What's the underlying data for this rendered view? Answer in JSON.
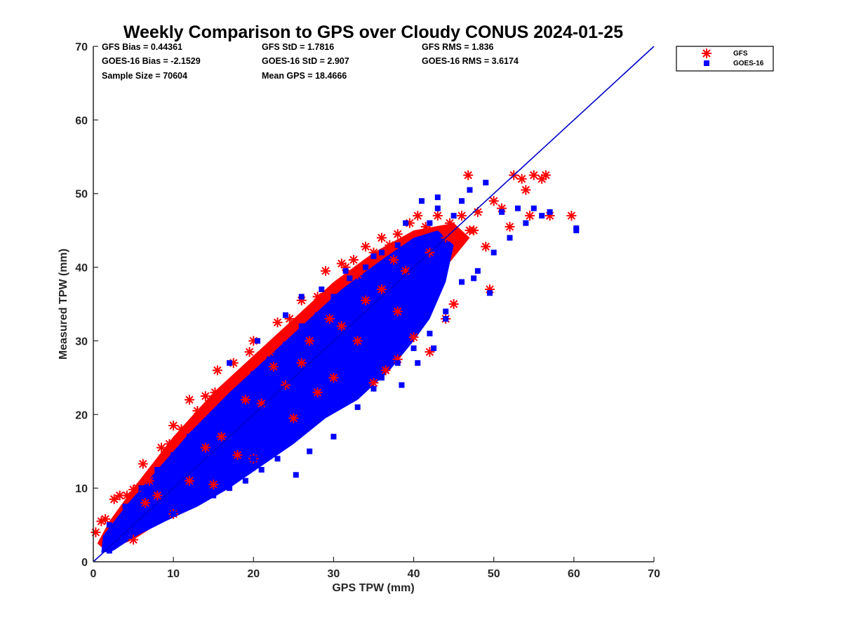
{
  "chart_data": {
    "type": "scatter",
    "title": "Weekly Comparison to GPS over Cloudy CONUS 2024-01-25",
    "xlabel": "GPS TPW (mm)",
    "ylabel": "Measured TPW (mm)",
    "xlim": [
      0,
      70
    ],
    "ylim": [
      0,
      70
    ],
    "xticks": [
      "0",
      "10",
      "20",
      "30",
      "40",
      "50",
      "60",
      "70"
    ],
    "yticks": [
      "0",
      "10",
      "20",
      "30",
      "40",
      "50",
      "60",
      "70"
    ],
    "grid": false,
    "legend_position": "top-right, outside",
    "stats": [
      [
        "GFS Bias = 0.44361",
        "GFS StD = 1.7816",
        "GFS RMS = 1.836"
      ],
      [
        "GOES-16 Bias = -2.1529",
        "GOES-16 StD = 2.907",
        "GOES-16 RMS = 3.6174"
      ],
      [
        "Sample Size = 70604",
        "Mean GPS = 18.4666",
        ""
      ]
    ],
    "reference_line": {
      "type": "one-to-one",
      "from": [
        0,
        0
      ],
      "to": [
        70,
        70
      ],
      "color": "#0000cc"
    },
    "series": [
      {
        "name": "GFS",
        "marker": "asterisk",
        "color": "#ff0000",
        "points": [
          [
            0.3,
            4.0
          ],
          [
            1.0,
            5.5
          ],
          [
            1.5,
            5.8
          ],
          [
            2.6,
            8.5
          ],
          [
            3.3,
            9.0
          ],
          [
            4.2,
            9.0
          ],
          [
            5.0,
            9.8
          ],
          [
            5.5,
            10.0
          ],
          [
            6.2,
            13.3
          ],
          [
            7.0,
            11.0
          ],
          [
            8.5,
            15.5
          ],
          [
            9.5,
            16.0
          ],
          [
            10.0,
            18.5
          ],
          [
            11.0,
            18.0
          ],
          [
            12.0,
            22.0
          ],
          [
            13.0,
            20.5
          ],
          [
            14.0,
            22.5
          ],
          [
            15.5,
            26.0
          ],
          [
            15.2,
            23.0
          ],
          [
            17.5,
            27.0
          ],
          [
            19.5,
            28.5
          ],
          [
            20.0,
            30.0
          ],
          [
            22.0,
            28.5
          ],
          [
            23.0,
            32.5
          ],
          [
            24.5,
            33.0
          ],
          [
            25.0,
            32.0
          ],
          [
            26.0,
            35.5
          ],
          [
            27.0,
            34.0
          ],
          [
            28.0,
            36.0
          ],
          [
            29.0,
            39.5
          ],
          [
            30.0,
            37.0
          ],
          [
            31.0,
            40.5
          ],
          [
            31.5,
            40.0
          ],
          [
            32.5,
            41.0
          ],
          [
            33.0,
            39.0
          ],
          [
            34.0,
            42.8
          ],
          [
            35.0,
            42.0
          ],
          [
            36.0,
            44.0
          ],
          [
            37.0,
            43.0
          ],
          [
            38.0,
            44.5
          ],
          [
            39.5,
            46.0
          ],
          [
            40.5,
            47.0
          ],
          [
            41.5,
            45.5
          ],
          [
            43.0,
            47.0
          ],
          [
            44.5,
            46.0
          ],
          [
            46.0,
            47.0
          ],
          [
            46.8,
            52.5
          ],
          [
            47.5,
            45.0
          ],
          [
            48.0,
            47.5
          ],
          [
            49.0,
            42.8
          ],
          [
            50.0,
            49.0
          ],
          [
            51.0,
            48.0
          ],
          [
            52.0,
            45.5
          ],
          [
            52.5,
            52.5
          ],
          [
            53.5,
            52.0
          ],
          [
            54.0,
            50.5
          ],
          [
            54.5,
            47.0
          ],
          [
            55.0,
            52.5
          ],
          [
            56.0,
            52.0
          ],
          [
            56.5,
            52.5
          ],
          [
            57.0,
            47.0
          ],
          [
            59.7,
            47.0
          ],
          [
            49.5,
            37.0
          ],
          [
            36.5,
            26.0
          ],
          [
            38.0,
            27.5
          ],
          [
            40.0,
            30.5
          ],
          [
            42.0,
            28.5
          ],
          [
            35.0,
            24.3
          ],
          [
            44.0,
            33.0
          ],
          [
            45.0,
            35.0
          ],
          [
            30.0,
            25.0
          ],
          [
            25.0,
            19.5
          ],
          [
            20.0,
            14.0
          ],
          [
            15.0,
            10.5
          ],
          [
            10.0,
            6.5
          ],
          [
            5.0,
            3.0
          ],
          [
            28.0,
            23.0
          ],
          [
            18.0,
            14.5
          ],
          [
            33.0,
            30.0
          ],
          [
            38.0,
            34.0
          ],
          [
            12.0,
            11.0
          ],
          [
            24.0,
            24.0
          ],
          [
            36.0,
            37.0
          ],
          [
            16.0,
            17.0
          ],
          [
            26.0,
            27.0
          ],
          [
            34.0,
            35.5
          ],
          [
            21.0,
            21.5
          ],
          [
            42.0,
            42.0
          ],
          [
            47.0,
            45.0
          ],
          [
            8.0,
            9.0
          ],
          [
            39.0,
            39.5
          ],
          [
            31.0,
            32.0
          ],
          [
            27.0,
            30.0
          ],
          [
            19.0,
            22.0
          ],
          [
            14.0,
            15.5
          ],
          [
            22.5,
            26.5
          ],
          [
            29.5,
            33.0
          ],
          [
            37.5,
            41.0
          ],
          [
            44.0,
            44.0
          ],
          [
            6.5,
            8.0
          ]
        ]
      },
      {
        "name": "GOES-16",
        "marker": "square",
        "color": "#0000ff",
        "points": [
          [
            1.5,
            2.0
          ],
          [
            2.0,
            1.5
          ],
          [
            3.0,
            2.5
          ],
          [
            4.5,
            3.5
          ],
          [
            6.0,
            4.5
          ],
          [
            8.0,
            5.5
          ],
          [
            10.0,
            6.5
          ],
          [
            12.0,
            8.0
          ],
          [
            14.0,
            9.0
          ],
          [
            16.0,
            10.5
          ],
          [
            18.0,
            11.5
          ],
          [
            20.0,
            14.0
          ],
          [
            22.0,
            15.0
          ],
          [
            24.0,
            16.5
          ],
          [
            26.0,
            18.0
          ],
          [
            28.0,
            20.0
          ],
          [
            30.0,
            21.5
          ],
          [
            32.0,
            22.0
          ],
          [
            34.0,
            24.0
          ],
          [
            36.0,
            25.0
          ],
          [
            38.0,
            27.0
          ],
          [
            40.0,
            29.0
          ],
          [
            42.0,
            31.0
          ],
          [
            44.0,
            34.0
          ],
          [
            46.0,
            38.0
          ],
          [
            48.0,
            39.5
          ],
          [
            50.0,
            42.0
          ],
          [
            52.0,
            44.0
          ],
          [
            54.0,
            46.0
          ],
          [
            56.0,
            47.0
          ],
          [
            57.0,
            47.5
          ],
          [
            60.3,
            45.3
          ],
          [
            60.3,
            45.0
          ],
          [
            55.0,
            48.0
          ],
          [
            53.0,
            48.0
          ],
          [
            51.0,
            47.5
          ],
          [
            49.0,
            51.5
          ],
          [
            46.0,
            49.0
          ],
          [
            45.0,
            47.0
          ],
          [
            43.0,
            48.0
          ],
          [
            41.0,
            49.0
          ],
          [
            42.0,
            46.0
          ],
          [
            38.0,
            43.0
          ],
          [
            36.0,
            42.0
          ],
          [
            34.0,
            40.0
          ],
          [
            32.0,
            38.5
          ],
          [
            30.0,
            36.0
          ],
          [
            28.0,
            33.5
          ],
          [
            26.0,
            32.0
          ],
          [
            24.0,
            29.5
          ],
          [
            22.0,
            27.5
          ],
          [
            20.0,
            25.5
          ],
          [
            18.0,
            23.0
          ],
          [
            16.0,
            21.0
          ],
          [
            14.0,
            19.0
          ],
          [
            12.0,
            17.0
          ],
          [
            10.0,
            14.5
          ],
          [
            8.0,
            12.5
          ],
          [
            6.0,
            10.0
          ],
          [
            4.0,
            7.5
          ],
          [
            2.0,
            5.0
          ],
          [
            25.3,
            11.8
          ],
          [
            35.0,
            23.5
          ],
          [
            38.5,
            24.0
          ],
          [
            40.5,
            27.0
          ],
          [
            42.5,
            29.0
          ],
          [
            44.0,
            33.0
          ],
          [
            47.5,
            38.5
          ],
          [
            49.5,
            36.5
          ],
          [
            33.0,
            21.0
          ],
          [
            30.0,
            17.0
          ],
          [
            27.0,
            15.0
          ],
          [
            23.0,
            14.0
          ],
          [
            21.0,
            12.5
          ],
          [
            19.0,
            11.0
          ],
          [
            17.0,
            10.0
          ],
          [
            15.0,
            9.0
          ],
          [
            13.0,
            8.5
          ],
          [
            11.0,
            7.5
          ],
          [
            9.0,
            6.5
          ],
          [
            17.0,
            27.0
          ],
          [
            20.5,
            30.0
          ],
          [
            24.0,
            33.5
          ],
          [
            26.0,
            36.0
          ],
          [
            28.5,
            37.0
          ],
          [
            31.5,
            39.5
          ],
          [
            35.0,
            41.5
          ],
          [
            39.0,
            46.0
          ],
          [
            43.0,
            49.5
          ],
          [
            47.0,
            50.5
          ]
        ]
      }
    ]
  },
  "legend": {
    "items": [
      {
        "label": "GFS",
        "marker": "asterisk",
        "color": "#ff0000"
      },
      {
        "label": "GOES-16",
        "marker": "square",
        "color": "#0000ff"
      }
    ]
  }
}
